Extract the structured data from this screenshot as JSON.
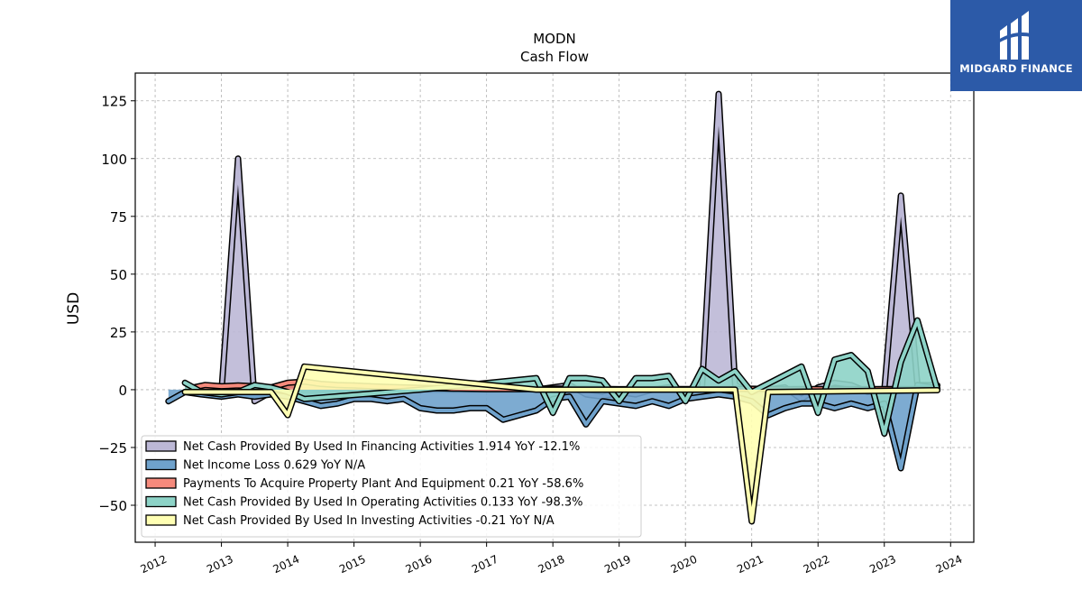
{
  "chart_data": {
    "type": "line",
    "title": "MODN",
    "subtitle": "Cash Flow",
    "ylabel": "USD",
    "xlabel": "",
    "xlim": [
      2011.7,
      2024.35
    ],
    "ylim": [
      -66,
      137
    ],
    "yticks": [
      -50,
      -25,
      0,
      25,
      50,
      75,
      100,
      125
    ],
    "ytick_labels": [
      "−50",
      "−25",
      "0",
      "25",
      "50",
      "75",
      "100",
      "125"
    ],
    "xticks": [
      2012,
      2013,
      2014,
      2015,
      2016,
      2017,
      2018,
      2019,
      2020,
      2021,
      2022,
      2023,
      2024
    ],
    "xtick_labels": [
      "2012",
      "2013",
      "2014",
      "2015",
      "2016",
      "2017",
      "2018",
      "2019",
      "2020",
      "2021",
      "2022",
      "2023",
      "2024"
    ],
    "grid": true,
    "legend_position": "lower-left",
    "series": [
      {
        "name": "Net Cash Provided By Used In Financing Activities  1.914 YoY -12.1%",
        "color": "#bcb8d6",
        "x": [
          2012.7,
          2013.0,
          2013.25,
          2013.5,
          2013.75,
          2014.0,
          2017.75,
          2018.0,
          2018.25,
          2018.5,
          2018.75,
          2019.0,
          2019.25,
          2019.5,
          2019.75,
          2020.0,
          2020.25,
          2020.5,
          2020.75,
          2021.0,
          2021.25,
          2021.5,
          2021.75,
          2022.0,
          2022.25,
          2022.5,
          2022.75,
          2023.0,
          2023.25,
          2023.5,
          2023.8
        ],
        "y": [
          0,
          -1,
          100,
          -5,
          -1,
          0,
          0,
          1,
          2,
          -2,
          -3,
          -1,
          -2,
          0,
          1,
          -1,
          1,
          128,
          2,
          -1,
          0,
          1,
          -4,
          1,
          3,
          2,
          -1,
          0,
          84,
          2,
          1.9
        ]
      },
      {
        "name": "Net Income Loss  0.629 YoY N/A",
        "color": "#6fa2cc",
        "x": [
          2012.2,
          2012.45,
          2012.7,
          2013.0,
          2013.25,
          2013.5,
          2013.75,
          2014.0,
          2014.25,
          2014.5,
          2014.75,
          2015.0,
          2015.25,
          2015.5,
          2015.75,
          2016.0,
          2016.25,
          2016.5,
          2016.75,
          2017.0,
          2017.25,
          2017.5,
          2017.75,
          2018.0,
          2018.25,
          2018.5,
          2018.75,
          2019.0,
          2019.25,
          2019.5,
          2019.75,
          2020.0,
          2020.25,
          2020.5,
          2020.75,
          2021.0,
          2021.25,
          2021.5,
          2021.75,
          2022.0,
          2022.25,
          2022.5,
          2022.75,
          2023.0,
          2023.25,
          2023.5,
          2023.8
        ],
        "y": [
          -5,
          -1,
          -2,
          -3,
          -2,
          -3,
          -2,
          -3,
          -5,
          -7,
          -6,
          -4,
          -4,
          -5,
          -4,
          -8,
          -9,
          -9,
          -8,
          -8,
          -13,
          -11,
          -9,
          -4,
          -3,
          -15,
          -5,
          -6,
          -7,
          -5,
          -7,
          -4,
          -3,
          -2,
          -3,
          -5,
          -11,
          -8,
          -6,
          -6,
          -8,
          -6,
          -8,
          -6,
          -34,
          2,
          0.6
        ]
      },
      {
        "name": "Payments To Acquire Property Plant And Equipment  0.21 YoY -58.6%",
        "color": "#f58a7c",
        "x": [
          2012.5,
          2012.75,
          2013.0,
          2013.25,
          2013.5,
          2013.75,
          2014.0,
          2014.25,
          2014.5,
          2014.75,
          2015.0,
          2015.25,
          2015.5,
          2015.75,
          2016.0,
          2016.5,
          2017.0,
          2017.5,
          2018.0,
          2018.5,
          2019.0,
          2019.5,
          2020.0,
          2020.5,
          2021.0,
          2021.5,
          2022.0,
          2022.5,
          2023.0,
          2023.5,
          2023.8
        ],
        "y": [
          0.5,
          2,
          1.5,
          1.8,
          1.5,
          1,
          3,
          3.5,
          2.5,
          2,
          1.8,
          1.5,
          1.2,
          1,
          0.8,
          0.5,
          0.3,
          0.3,
          0.5,
          0.4,
          0.2,
          0.3,
          0.3,
          0.2,
          0.4,
          0.2,
          0.3,
          0.2,
          0.3,
          0.2,
          0.21
        ]
      },
      {
        "name": "Net Cash Provided By Used In Operating Activities  0.133 YoY -98.3%",
        "color": "#8dd3c7",
        "x": [
          2012.45,
          2012.7,
          2013.0,
          2013.25,
          2013.5,
          2013.75,
          2014.0,
          2014.25,
          2016.0,
          2017.75,
          2018.0,
          2018.25,
          2018.5,
          2018.75,
          2019.0,
          2019.25,
          2019.5,
          2019.75,
          2020.0,
          2020.25,
          2020.5,
          2020.75,
          2021.0,
          2021.75,
          2022.0,
          2022.25,
          2022.5,
          2022.75,
          2023.0,
          2023.25,
          2023.5,
          2023.8
        ],
        "y": [
          3,
          -1,
          -2,
          -1,
          2,
          1,
          -1,
          -4,
          0,
          5,
          -10,
          5,
          5,
          4,
          -5,
          5,
          5,
          6,
          -5,
          9,
          4,
          8,
          -1,
          10,
          -10,
          13,
          15,
          8,
          -19,
          12,
          30,
          0.1
        ]
      },
      {
        "name": "Net Cash Provided By Used In Investing Activities  -0.21 YoY N/A",
        "color": "#ffffb3",
        "x": [
          2012.45,
          2013.0,
          2013.75,
          2014.0,
          2014.25,
          2017.75,
          2020.75,
          2021.0,
          2021.25,
          2023.8
        ],
        "y": [
          -1,
          -1,
          -1,
          -11,
          10,
          0,
          0,
          -57,
          -1,
          -0.21
        ]
      }
    ]
  },
  "logo": {
    "text": "MIDGARD FINANCE",
    "color": "#2c5aa8"
  }
}
